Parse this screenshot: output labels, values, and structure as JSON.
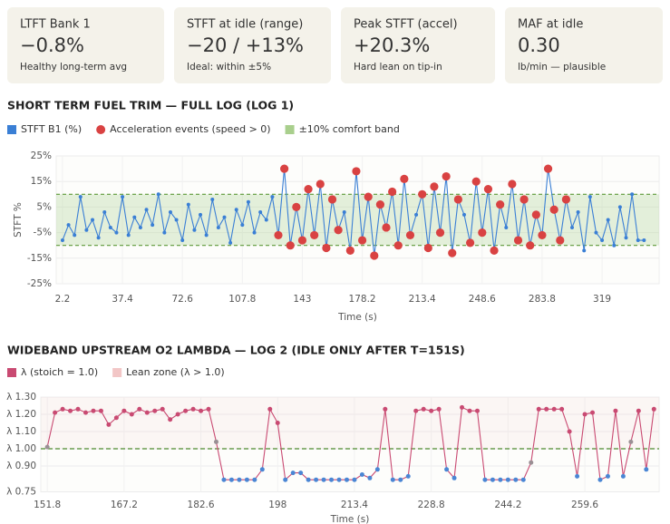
{
  "kpis": [
    {
      "label": "LTFT Bank 1",
      "value": "−0.8%",
      "note": "Healthy long-term avg",
      "color": "#3f6b2a"
    },
    {
      "label": "STFT at idle (range)",
      "value": "−20 / +13%",
      "note": "Ideal: within ±5%",
      "color": "#5b4a1c"
    },
    {
      "label": "Peak STFT (accel)",
      "value": "+20.3%",
      "note": "Hard lean on tip-in",
      "color": "#9a2a2a"
    },
    {
      "label": "MAF at idle",
      "value": "0.30",
      "note": "lb/min — plausible",
      "color": "#222222"
    }
  ],
  "chart_data": [
    {
      "type": "line",
      "title": "SHORT TERM FUEL TRIM — FULL LOG (LOG 1)",
      "xlabel": "Time (s)",
      "ylabel": "STFT %",
      "x": [
        2.2,
        5.72,
        9.24,
        12.76,
        16.28,
        19.8,
        23.32,
        26.84,
        30.36,
        33.88,
        37.4,
        40.92,
        44.44,
        47.96,
        51.48,
        55,
        58.52,
        62.04,
        65.56,
        69.08,
        72.6,
        76.12,
        79.64,
        83.16,
        86.68,
        90.2,
        93.72,
        97.24,
        100.76,
        104.28,
        107.8,
        111.32,
        114.84,
        118.36,
        121.88,
        125.4,
        128.92,
        132.44,
        135.96,
        139.48,
        143,
        146.52,
        150.04,
        153.56,
        157.08,
        160.6,
        164.12,
        167.64,
        171.16,
        174.68,
        178.2,
        181.72,
        185.24,
        188.76,
        192.28,
        195.8,
        199.32,
        202.84,
        206.36,
        209.88,
        213.4,
        216.92,
        220.44,
        223.96,
        227.48,
        231,
        234.52,
        238.04,
        241.56,
        245.08,
        248.6,
        252.12,
        255.64,
        259.16,
        262.68,
        266.2,
        269.72,
        273.24,
        276.76,
        280.28,
        283.8,
        287.32,
        290.84,
        294.36,
        297.88,
        301.4,
        304.92,
        308.44,
        311.96,
        315.48,
        319,
        322.52,
        326.04,
        329.56,
        333.08,
        336.6,
        340.12,
        343.64
      ],
      "xlim": [
        -1.5,
        352.5
      ],
      "xticks": [
        2.2,
        37.4,
        72.6,
        107.8,
        143,
        178.2,
        213.4,
        248.6,
        283.8,
        319
      ],
      "ylim": [
        -25,
        25
      ],
      "yticks": [
        {
          "value": -25,
          "label": "-25%"
        },
        {
          "value": -15,
          "label": "-15%"
        },
        {
          "value": -5,
          "label": "-5%"
        },
        {
          "value": 5,
          "label": "5%"
        },
        {
          "value": 15,
          "label": "15%"
        },
        {
          "value": 25,
          "label": "25%"
        }
      ],
      "grid": true,
      "series": [
        {
          "name": "STFT B1 (%)",
          "color": "#3a7fd5",
          "values": [
            -8,
            -2,
            -6,
            9,
            -4,
            0,
            -7,
            3,
            -3,
            -5,
            9,
            -6,
            1,
            -3,
            4,
            -2,
            10,
            -5,
            3,
            0,
            -8,
            6,
            -4,
            2,
            -6,
            8,
            -3,
            1,
            -9,
            4,
            -2,
            7,
            -5,
            3,
            0,
            9,
            -6,
            20,
            -10,
            5,
            -8,
            12,
            -6,
            14,
            -11,
            8,
            -4,
            3,
            -12,
            19,
            -8,
            9,
            -14,
            6,
            -3,
            11,
            -10,
            16,
            -6,
            2,
            10,
            -11,
            13,
            -5,
            17,
            -13,
            8,
            2,
            -9,
            15,
            -5,
            12,
            -12,
            6,
            -3,
            14,
            -8,
            8,
            -10,
            2,
            -6,
            20,
            4,
            -8,
            8,
            -3,
            3,
            -12,
            9,
            -5,
            -8,
            0,
            -10,
            5,
            -7,
            10,
            -8,
            -8
          ]
        },
        {
          "name": "Acceleration events (speed > 0)",
          "color": "#d94242",
          "marker_only": true,
          "values": [
            null,
            null,
            null,
            null,
            null,
            null,
            null,
            null,
            null,
            null,
            null,
            null,
            null,
            null,
            null,
            null,
            null,
            null,
            null,
            null,
            null,
            null,
            null,
            null,
            null,
            null,
            null,
            null,
            null,
            null,
            null,
            null,
            null,
            null,
            null,
            null,
            -6,
            20,
            -10,
            5,
            -8,
            12,
            -6,
            14,
            -11,
            8,
            -4,
            null,
            -12,
            19,
            -8,
            9,
            -14,
            6,
            -3,
            11,
            -10,
            16,
            -6,
            null,
            10,
            -11,
            13,
            -5,
            17,
            -13,
            8,
            null,
            -9,
            15,
            -5,
            12,
            -12,
            6,
            null,
            14,
            -8,
            8,
            -10,
            2,
            -6,
            20,
            4,
            -8,
            8,
            null,
            null,
            null,
            null,
            null,
            null,
            null,
            null,
            null,
            null,
            null,
            null,
            null
          ]
        }
      ],
      "bands": [
        {
          "name": "±10% comfort band",
          "color": "#a9cf8d",
          "edge": "#5f9a3a",
          "range": [
            -10,
            10
          ]
        }
      ]
    },
    {
      "type": "line",
      "title": "WIDEBAND UPSTREAM O2 LAMBDA — LOG 2 (IDLE ONLY AFTER T=151S)",
      "xlabel": "Time (s)",
      "x": [
        151.8,
        153.34,
        154.88,
        156.42,
        157.96,
        159.5,
        161.04,
        162.58,
        164.12,
        165.66,
        167.2,
        168.74,
        170.28,
        171.82,
        173.36,
        174.9,
        176.44,
        177.98,
        179.52,
        181.06,
        182.6,
        184.14,
        185.68,
        187.22,
        188.76,
        190.3,
        191.84,
        193.38,
        194.92,
        196.46,
        198,
        199.54,
        201.08,
        202.62,
        204.16,
        205.7,
        207.24,
        208.78,
        210.32,
        211.86,
        213.4,
        214.94,
        216.48,
        218.02,
        219.56,
        221.1,
        222.64,
        224.18,
        225.72,
        227.26,
        228.8,
        230.34,
        231.88,
        233.42,
        234.96,
        236.5,
        238.04,
        239.58,
        241.12,
        242.66,
        244.2,
        245.74,
        247.28,
        248.82,
        250.36,
        251.9,
        253.44,
        254.98,
        256.52,
        258.06,
        259.6,
        261.14,
        262.68,
        264.22,
        265.76,
        267.3,
        268.84,
        270.38,
        271.92,
        273.46
      ],
      "xlim": [
        150.5,
        274.5
      ],
      "xticks": [
        151.8,
        167.2,
        182.6,
        198,
        213.4,
        228.8,
        244.2,
        259.6
      ],
      "ylim": [
        0.75,
        1.3
      ],
      "yticks": [
        {
          "value": 0.75,
          "label": "λ 0.75"
        },
        {
          "value": 0.9,
          "label": "λ 0.90"
        },
        {
          "value": 1,
          "label": "λ 1.00"
        },
        {
          "value": 1.1,
          "label": "λ 1.10"
        },
        {
          "value": 1.2,
          "label": "λ 1.20"
        },
        {
          "value": 1.3,
          "label": "λ 1.30"
        }
      ],
      "grid": true,
      "series": [
        {
          "name": "λ (stoich = 1.0)",
          "color": "#c94a72",
          "rich_color": "#4a86d4",
          "mid_color": "#9a8f94",
          "values": [
            1.01,
            1.21,
            1.23,
            1.22,
            1.23,
            1.21,
            1.22,
            1.22,
            1.14,
            1.18,
            1.22,
            1.2,
            1.23,
            1.21,
            1.22,
            1.23,
            1.17,
            1.2,
            1.22,
            1.23,
            1.22,
            1.23,
            1.04,
            0.82,
            0.82,
            0.82,
            0.82,
            0.82,
            0.88,
            1.23,
            1.15,
            0.82,
            0.86,
            0.86,
            0.82,
            0.82,
            0.82,
            0.82,
            0.82,
            0.82,
            0.82,
            0.85,
            0.83,
            0.88,
            1.23,
            0.82,
            0.82,
            0.84,
            1.22,
            1.23,
            1.22,
            1.23,
            0.88,
            0.83,
            1.24,
            1.22,
            1.22,
            0.82,
            0.82,
            0.82,
            0.82,
            0.82,
            0.82,
            0.92,
            1.23,
            1.23,
            1.23,
            1.23,
            1.1,
            0.84,
            1.2,
            1.21,
            0.82,
            0.84,
            1.22,
            0.84,
            1.04,
            1.22,
            0.88,
            1.23
          ]
        }
      ],
      "bands": [
        {
          "name": "Lean zone (λ > 1.0)",
          "color": "#f2c6c6",
          "range": [
            1,
            1.3
          ]
        }
      ],
      "reference": {
        "value": 1,
        "color": "#4e8a2e"
      }
    }
  ]
}
